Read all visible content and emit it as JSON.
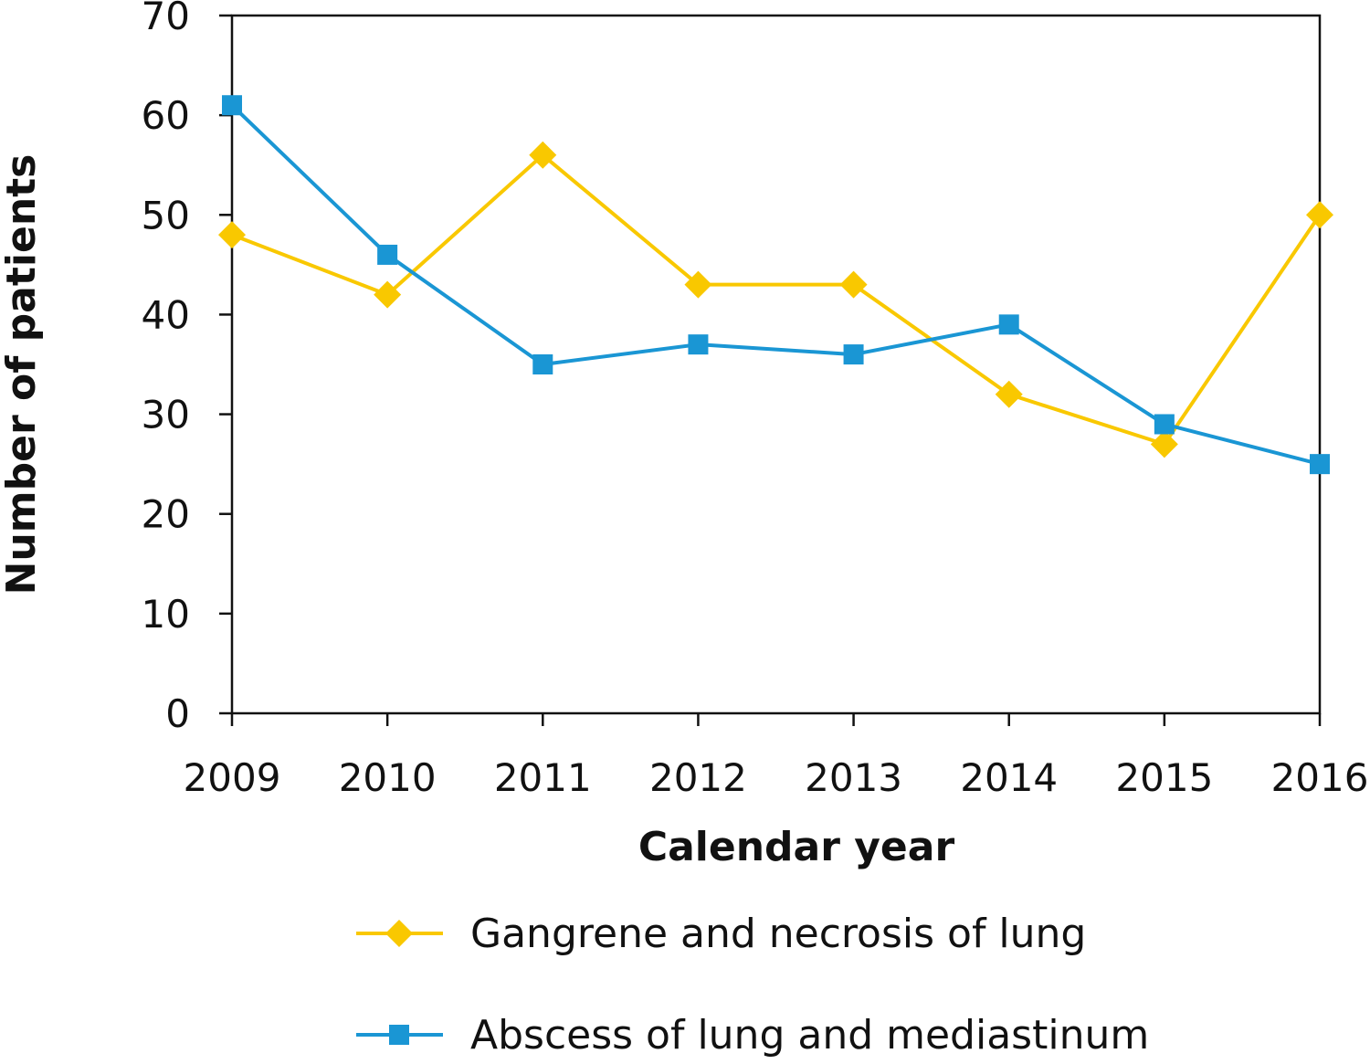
{
  "chart_data": {
    "type": "line",
    "x": [
      2009,
      2010,
      2011,
      2012,
      2013,
      2014,
      2015,
      2016
    ],
    "xlabel": "Calendar year",
    "ylabel": "Number of patients",
    "ylim": [
      0,
      70
    ],
    "yticks": [
      0,
      10,
      20,
      30,
      40,
      50,
      60,
      70
    ],
    "grid": false,
    "legend_position": "bottom",
    "series": [
      {
        "name": "Gangrene and necrosis of lung",
        "values": [
          48,
          42,
          56,
          43,
          43,
          32,
          27,
          50
        ],
        "color": "#F9C800",
        "marker": "diamond"
      },
      {
        "name": "Abscess of lung and mediastinum",
        "values": [
          61,
          46,
          35,
          37,
          36,
          39,
          29,
          25
        ],
        "color": "#1A96D4",
        "marker": "square"
      }
    ]
  }
}
